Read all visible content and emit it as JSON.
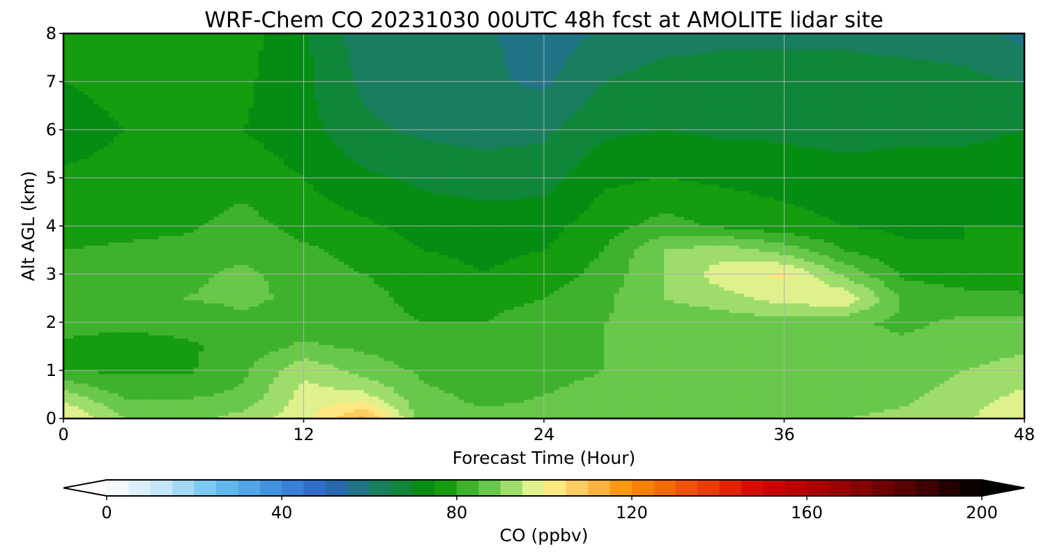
{
  "chart_data": {
    "type": "heatmap",
    "title": "WRF-Chem CO  20231030 00UTC 48h fcst at AMOLITE lidar site",
    "xlabel": "Forecast Time (Hour)",
    "ylabel": "Alt AGL (km)",
    "xlim": [
      0,
      48
    ],
    "ylim": [
      0,
      8
    ],
    "x_ticks": [
      "0",
      "12",
      "24",
      "36",
      "48"
    ],
    "y_ticks": [
      "0",
      "1",
      "2",
      "3",
      "4",
      "5",
      "6",
      "7",
      "8"
    ],
    "grid": true,
    "x_hours": [
      0,
      3,
      6,
      9,
      12,
      15,
      18,
      21,
      24,
      27,
      30,
      33,
      36,
      39,
      42,
      45,
      48
    ],
    "alt_km": [
      0,
      0.5,
      1,
      1.5,
      2,
      2.5,
      3,
      3.5,
      4,
      5,
      6,
      7,
      8
    ],
    "values_ppbv": [
      [
        102,
        90,
        88,
        92,
        98,
        112,
        86,
        86,
        86,
        86,
        87,
        88,
        90,
        90,
        91,
        94,
        101
      ],
      [
        92,
        84,
        84,
        86,
        97,
        96,
        86,
        84,
        85,
        86,
        86,
        86,
        87,
        88,
        89,
        92,
        96
      ],
      [
        80,
        79,
        79,
        84,
        94,
        88,
        84,
        82,
        84,
        85,
        85,
        85,
        86,
        86,
        87,
        90,
        92
      ],
      [
        79,
        78,
        79,
        82,
        86,
        84,
        82,
        82,
        84,
        85,
        85,
        86,
        85,
        86,
        86,
        88,
        89
      ],
      [
        82,
        81,
        82,
        84,
        82,
        82,
        80,
        80,
        83,
        85,
        86,
        87,
        88,
        86,
        84,
        86,
        86
      ],
      [
        84,
        84,
        85,
        86,
        84,
        82,
        78,
        78,
        80,
        84,
        90,
        93,
        97,
        99,
        84,
        82,
        81
      ],
      [
        82,
        83,
        84,
        86,
        83,
        80,
        77,
        75,
        77,
        82,
        90,
        98,
        101,
        89,
        79,
        77,
        77
      ],
      [
        80,
        81,
        82,
        84,
        81,
        78,
        75,
        74,
        75,
        80,
        90,
        93,
        88,
        80,
        76,
        75,
        76
      ],
      [
        78,
        78,
        79,
        82,
        78,
        76,
        73,
        72,
        73,
        78,
        82,
        79,
        77,
        75,
        74,
        75,
        75
      ],
      [
        76,
        77,
        77,
        78,
        75,
        71,
        69,
        68,
        68,
        74,
        75,
        74,
        73,
        72,
        72,
        72,
        73
      ],
      [
        72,
        75,
        76,
        75,
        72,
        66,
        64,
        63,
        64,
        69,
        70,
        69,
        69,
        68,
        69,
        69,
        70
      ],
      [
        75,
        77,
        77,
        76,
        71,
        64,
        62,
        61,
        59,
        65,
        67,
        67,
        67,
        67,
        67,
        66,
        65
      ],
      [
        77,
        78,
        80,
        77,
        71,
        62,
        62,
        61,
        57,
        61,
        63,
        64,
        64,
        64,
        63,
        63,
        58
      ]
    ],
    "colorbar": {
      "label": "CO  (ppbv)",
      "min": 0,
      "max": 200,
      "step": 5,
      "extend": "both",
      "ticks": [
        "0",
        "40",
        "80",
        "120",
        "160",
        "200"
      ],
      "anchor_colors": [
        [
          0,
          "#ffffff"
        ],
        [
          15,
          "#b8e0f8"
        ],
        [
          25,
          "#68c2f0"
        ],
        [
          40,
          "#3b88dd"
        ],
        [
          50,
          "#2e62c2"
        ],
        [
          60,
          "#1d7a72"
        ],
        [
          75,
          "#009100"
        ],
        [
          90,
          "#7ed35a"
        ],
        [
          97,
          "#d8f08c"
        ],
        [
          100,
          "#fff590"
        ],
        [
          110,
          "#ffc052"
        ],
        [
          120,
          "#ff8c00"
        ],
        [
          135,
          "#ec4a00"
        ],
        [
          150,
          "#d00000"
        ],
        [
          170,
          "#920000"
        ],
        [
          185,
          "#4a0000"
        ],
        [
          200,
          "#000000"
        ]
      ]
    }
  }
}
